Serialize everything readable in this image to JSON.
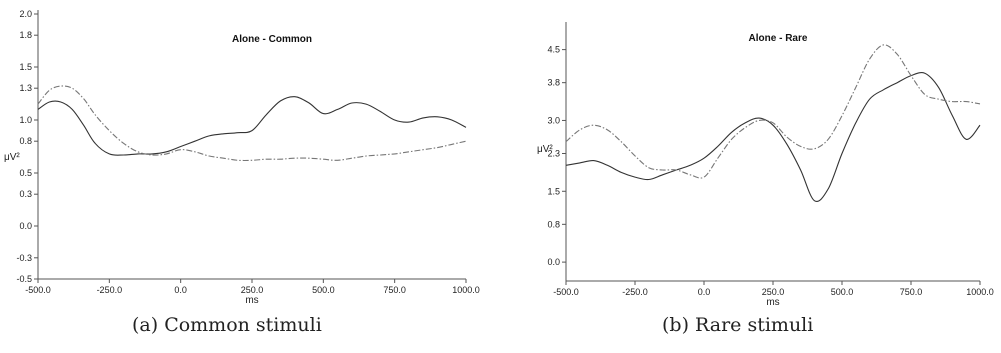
{
  "chart_data": [
    {
      "type": "line",
      "title": "Alone - Common",
      "caption": "(a) Common stimuli",
      "xlabel": "ms",
      "ylabel": "μV²",
      "xlim": [
        -500,
        1000
      ],
      "ylim": [
        -0.5,
        2.0
      ],
      "xticks": [
        "-500.0",
        "-250.0",
        "0.0",
        "250.0",
        "500.0",
        "750.0",
        "1000.0"
      ],
      "yticks": [
        "-0.5",
        "-0.3",
        "0.0",
        "0.3",
        "0.5",
        "0.8",
        "1.0",
        "1.3",
        "1.5",
        "1.8",
        "2.0"
      ],
      "grid": false,
      "series": [
        {
          "style": "solid",
          "color": "#333333",
          "x": [
            -500,
            -460,
            -420,
            -380,
            -340,
            -300,
            -250,
            -200,
            -150,
            -100,
            -50,
            0,
            50,
            100,
            150,
            200,
            250,
            300,
            350,
            400,
            450,
            500,
            550,
            600,
            650,
            700,
            750,
            800,
            850,
            900,
            950,
            1000
          ],
          "y": [
            1.1,
            1.17,
            1.17,
            1.1,
            0.95,
            0.78,
            0.68,
            0.67,
            0.68,
            0.68,
            0.7,
            0.75,
            0.8,
            0.85,
            0.87,
            0.88,
            0.9,
            1.05,
            1.18,
            1.22,
            1.16,
            1.06,
            1.1,
            1.16,
            1.15,
            1.08,
            1.0,
            0.98,
            1.02,
            1.03,
            1.0,
            0.93
          ]
        },
        {
          "style": "dash-dot",
          "color": "#777777",
          "x": [
            -500,
            -460,
            -420,
            -380,
            -340,
            -300,
            -250,
            -200,
            -150,
            -100,
            -50,
            0,
            50,
            100,
            150,
            200,
            250,
            300,
            350,
            400,
            450,
            500,
            550,
            600,
            650,
            700,
            750,
            800,
            850,
            900,
            950,
            1000
          ],
          "y": [
            1.15,
            1.28,
            1.32,
            1.3,
            1.2,
            1.05,
            0.9,
            0.78,
            0.7,
            0.67,
            0.68,
            0.72,
            0.7,
            0.66,
            0.64,
            0.62,
            0.62,
            0.63,
            0.63,
            0.64,
            0.64,
            0.63,
            0.62,
            0.64,
            0.66,
            0.67,
            0.68,
            0.7,
            0.72,
            0.74,
            0.77,
            0.8
          ]
        }
      ]
    },
    {
      "type": "line",
      "title": "Alone - Rare",
      "caption": "(b) Rare stimuli",
      "xlabel": "ms",
      "ylabel": "μV²",
      "xlim": [
        -500,
        1000
      ],
      "ylim": [
        -0.4,
        5.0
      ],
      "xticks": [
        "-500.0",
        "-250.0",
        "0.0",
        "250.0",
        "500.0",
        "750.0",
        "1000.0"
      ],
      "yticks": [
        "0.0",
        "0.8",
        "1.5",
        "2.3",
        "3.0",
        "3.8",
        "4.5"
      ],
      "grid": false,
      "series": [
        {
          "style": "solid",
          "color": "#333333",
          "x": [
            -500,
            -450,
            -400,
            -350,
            -300,
            -250,
            -200,
            -150,
            -100,
            -50,
            0,
            50,
            100,
            150,
            200,
            250,
            300,
            350,
            400,
            450,
            500,
            550,
            600,
            650,
            700,
            750,
            800,
            850,
            900,
            950,
            1000
          ],
          "y": [
            2.05,
            2.1,
            2.15,
            2.05,
            1.9,
            1.8,
            1.75,
            1.85,
            1.95,
            2.05,
            2.2,
            2.45,
            2.75,
            2.95,
            3.05,
            2.9,
            2.5,
            1.95,
            1.3,
            1.55,
            2.3,
            2.95,
            3.45,
            3.65,
            3.8,
            3.95,
            4.0,
            3.7,
            3.1,
            2.6,
            2.9
          ]
        },
        {
          "style": "dash-dot",
          "color": "#777777",
          "x": [
            -500,
            -450,
            -400,
            -350,
            -300,
            -250,
            -200,
            -150,
            -100,
            -50,
            0,
            50,
            100,
            150,
            200,
            250,
            300,
            350,
            400,
            450,
            500,
            550,
            600,
            650,
            700,
            750,
            800,
            850,
            900,
            950,
            1000
          ],
          "y": [
            2.55,
            2.8,
            2.9,
            2.8,
            2.55,
            2.25,
            2.0,
            1.95,
            1.95,
            1.85,
            1.8,
            2.2,
            2.6,
            2.85,
            3.0,
            2.95,
            2.65,
            2.45,
            2.4,
            2.6,
            3.1,
            3.7,
            4.3,
            4.6,
            4.4,
            3.95,
            3.55,
            3.45,
            3.4,
            3.4,
            3.35
          ]
        }
      ]
    }
  ]
}
